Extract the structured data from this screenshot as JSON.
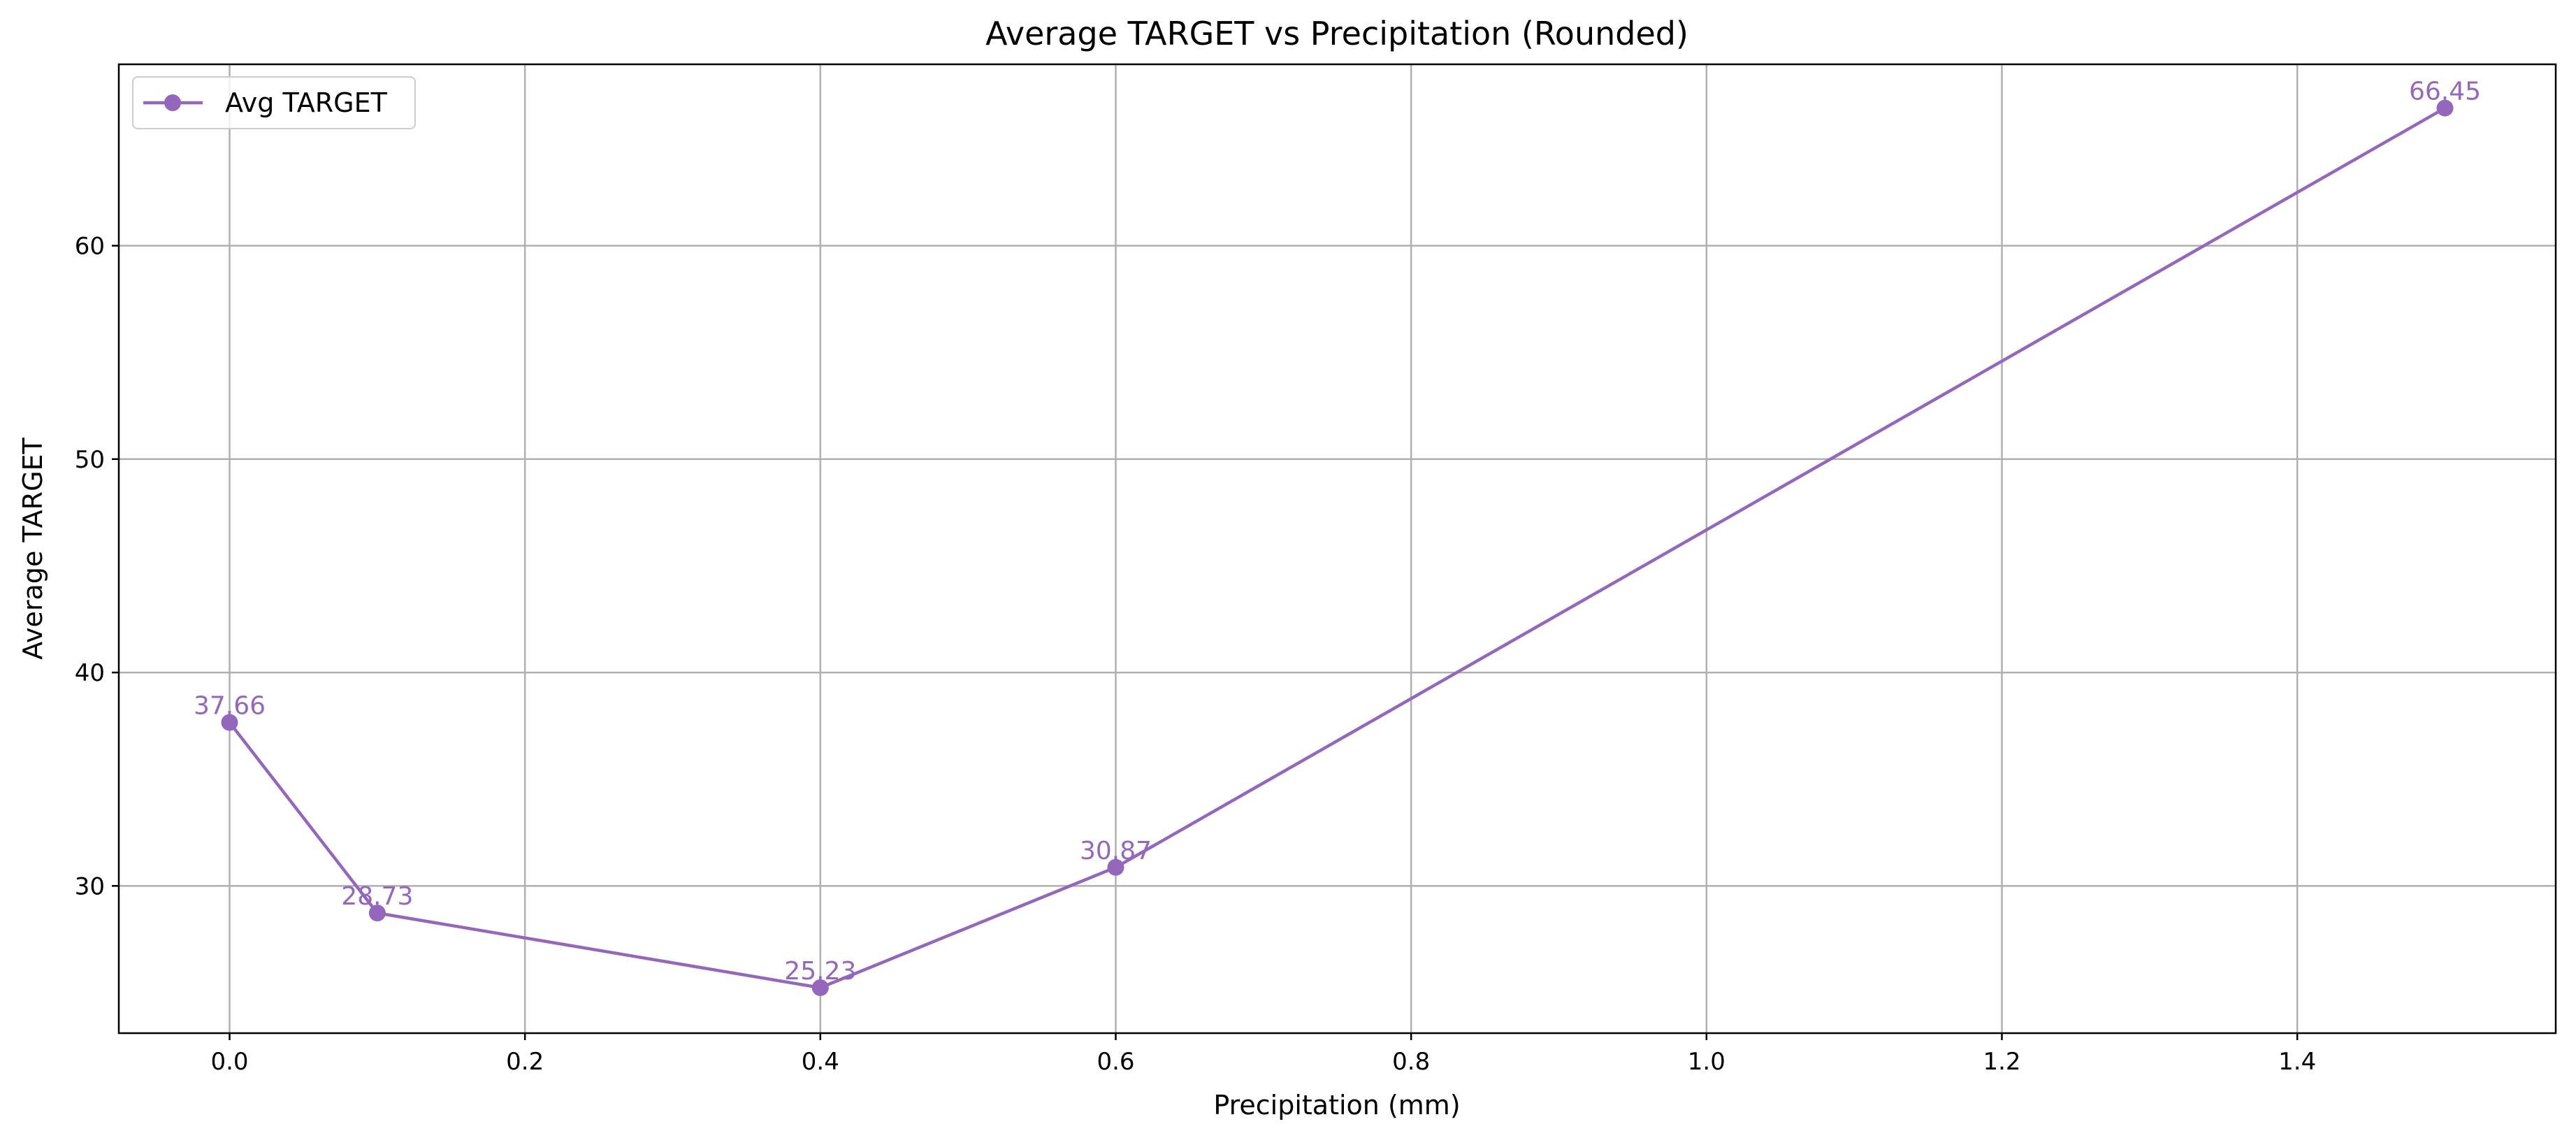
{
  "chart_data": {
    "type": "line",
    "title": "Average TARGET vs Precipitation (Rounded)",
    "xlabel": "Precipitation (mm)",
    "ylabel": "Average TARGET",
    "xlim": [
      -0.075,
      1.575
    ],
    "ylim": [
      23.1,
      68.5
    ],
    "x_ticks": [
      0.0,
      0.2,
      0.4,
      0.6,
      0.8,
      1.0,
      1.2,
      1.4
    ],
    "x_tick_labels": [
      "0.0",
      "0.2",
      "0.4",
      "0.6",
      "0.8",
      "1.0",
      "1.2",
      "1.4"
    ],
    "y_ticks": [
      30,
      40,
      50,
      60
    ],
    "y_tick_labels": [
      "30",
      "40",
      "50",
      "60"
    ],
    "grid": true,
    "legend_position": "top-left",
    "series": [
      {
        "name": "Avg TARGET",
        "color": "#9467bd",
        "marker": "circle",
        "x": [
          0.0,
          0.1,
          0.4,
          0.6,
          1.5
        ],
        "y": [
          37.66,
          28.73,
          25.23,
          30.87,
          66.45
        ],
        "data_labels": [
          "37.66",
          "28.73",
          "25.23",
          "30.87",
          "66.45"
        ]
      }
    ]
  }
}
